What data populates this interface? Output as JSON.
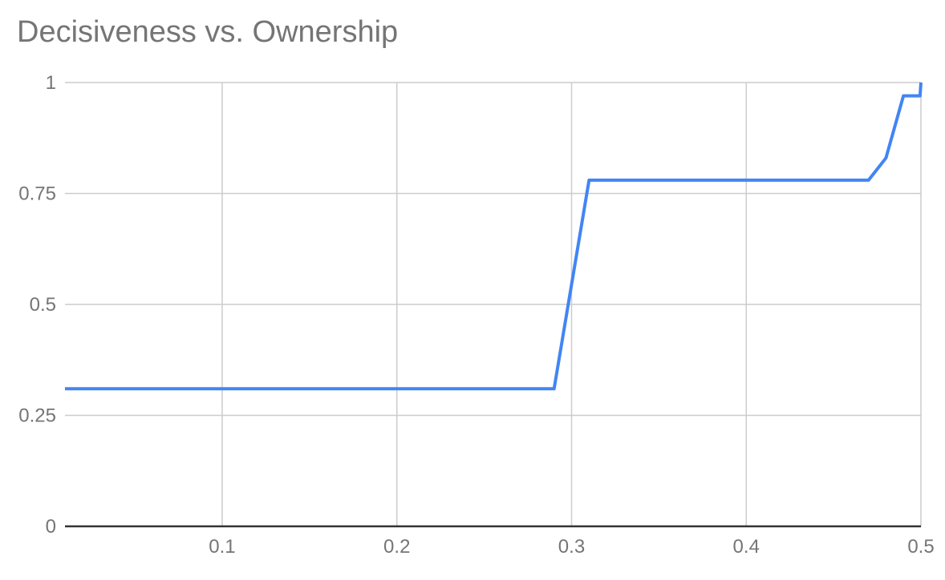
{
  "chart_data": {
    "type": "line",
    "title": "Decisiveness vs. Ownership",
    "xlabel": "",
    "ylabel": "",
    "xlim": [
      0.01,
      0.5
    ],
    "ylim": [
      0,
      1
    ],
    "x_ticks": [
      0.1,
      0.2,
      0.3,
      0.4,
      0.5
    ],
    "x_tick_labels": [
      "0.1",
      "0.2",
      "0.3",
      "0.4",
      "0.5"
    ],
    "y_ticks": [
      0,
      0.25,
      0.5,
      0.75,
      1
    ],
    "y_tick_labels": [
      "0",
      "0.25",
      "0.5",
      "0.75",
      "1"
    ],
    "grid": true,
    "legend_position": "none",
    "series": [
      {
        "color": "#4285f4",
        "points": [
          [
            0.01,
            0.31
          ],
          [
            0.29,
            0.31
          ],
          [
            0.31,
            0.78
          ],
          [
            0.47,
            0.78
          ],
          [
            0.48,
            0.83
          ],
          [
            0.49,
            0.97
          ],
          [
            0.4995,
            0.97
          ],
          [
            0.5,
            1.0
          ]
        ]
      }
    ],
    "colors": {
      "title": "#757575",
      "tick_label": "#757575",
      "gridline": "#cccccc",
      "axis_line": "#333333",
      "series_line": "#4285f4",
      "background": "#ffffff"
    }
  }
}
